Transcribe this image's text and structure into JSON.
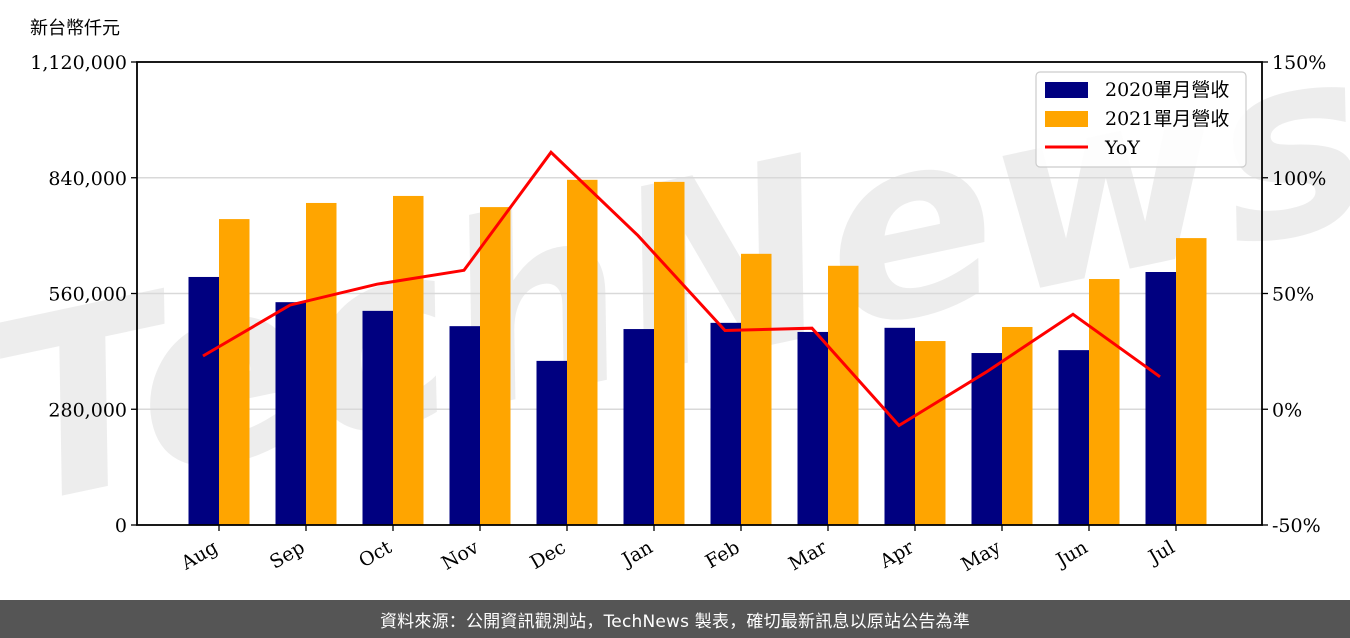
{
  "unit_label": "新台幣仟元",
  "footer": "資料來源：公開資訊觀測站，TechNews 製表，確切最新訊息以原站公告為準",
  "watermark": "TechNews",
  "colors": {
    "series_2020": "#000080",
    "series_2021": "#FFA500",
    "yoy": "#FF0000",
    "grid": "#d9d9d9",
    "footer_bg": "#555555"
  },
  "chart_data": {
    "type": "bar",
    "title": "",
    "xlabel": "",
    "ylabel": "新台幣仟元",
    "y2label": "",
    "categories": [
      "Aug",
      "Sep",
      "Oct",
      "Nov",
      "Dec",
      "Jan",
      "Feb",
      "Mar",
      "Apr",
      "May",
      "Jun",
      "Jul"
    ],
    "series": [
      {
        "name": "2020單月營收",
        "type": "bar",
        "axis": "left",
        "color": "#000080",
        "values": [
          600000,
          539000,
          518000,
          481000,
          397000,
          474000,
          489000,
          467000,
          477000,
          416000,
          423000,
          612000
        ]
      },
      {
        "name": "2021單月營收",
        "type": "bar",
        "axis": "left",
        "color": "#FFA500",
        "values": [
          740000,
          779000,
          796000,
          769000,
          835000,
          830000,
          656000,
          627000,
          445000,
          479000,
          595000,
          694000
        ]
      },
      {
        "name": "YoY",
        "type": "line",
        "axis": "right",
        "color": "#FF0000",
        "unit": "%",
        "values": [
          23,
          45,
          54,
          60,
          111,
          75,
          34,
          35,
          -7,
          16,
          41,
          14
        ]
      }
    ],
    "ylim": [
      0,
      1120000
    ],
    "yticks": [
      0,
      280000,
      560000,
      840000,
      1120000
    ],
    "ytick_labels": [
      "0",
      "280,000",
      "560,000",
      "840,000",
      "1,120,000"
    ],
    "y2lim": [
      -50,
      150
    ],
    "y2ticks": [
      -50,
      0,
      50,
      100,
      150
    ],
    "y2tick_labels": [
      "-50%",
      "0%",
      "50%",
      "100%",
      "150%"
    ],
    "grid": "horizontal",
    "legend_position": "upper right",
    "legend": [
      "2020單月營收",
      "2021單月營收",
      "YoY"
    ]
  }
}
